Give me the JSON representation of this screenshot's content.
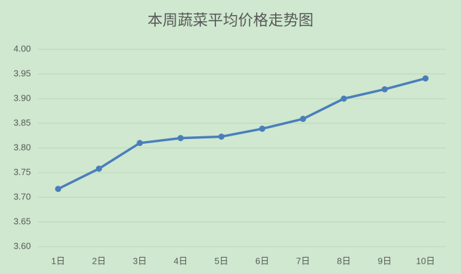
{
  "chart_data": {
    "type": "line",
    "title": "本周蔬菜平均价格走势图",
    "categories": [
      "1日",
      "2日",
      "3日",
      "4日",
      "5日",
      "6日",
      "7日",
      "8日",
      "9日",
      "10日"
    ],
    "values": [
      3.717,
      3.758,
      3.81,
      3.82,
      3.823,
      3.839,
      3.859,
      3.9,
      3.919,
      3.941
    ],
    "color": "#4a7ebb",
    "ylim": [
      3.6,
      4.0
    ],
    "yticks": [
      {
        "value": 3.6,
        "label": "3.60"
      },
      {
        "value": 3.65,
        "label": "3.65"
      },
      {
        "value": 3.7,
        "label": "3.70"
      },
      {
        "value": 3.75,
        "label": "3.75"
      },
      {
        "value": 3.8,
        "label": "3.80"
      },
      {
        "value": 3.85,
        "label": "3.85"
      },
      {
        "value": 3.9,
        "label": "3.90"
      },
      {
        "value": 3.95,
        "label": "3.95"
      },
      {
        "value": 4.0,
        "label": "4.00"
      }
    ],
    "grid": true
  }
}
